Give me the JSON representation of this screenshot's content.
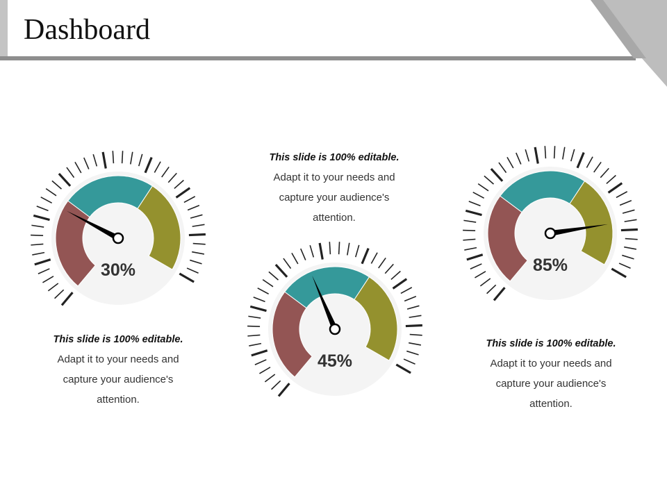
{
  "title": "Dashboard",
  "colors": {
    "segment_low": "#935554",
    "segment_mid": "#35999A",
    "segment_high": "#94912E",
    "tick": "#222222",
    "header_gray": "#BDBDBD"
  },
  "caption": {
    "bold": "This slide is 100% editable.",
    "line1": "Adapt it to your needs and",
    "line2": "capture your audience's",
    "line3": "attention."
  },
  "chart_data": [
    {
      "type": "gauge",
      "value": 30,
      "label": "30%",
      "range": [
        0,
        100
      ]
    },
    {
      "type": "gauge",
      "value": 45,
      "label": "45%",
      "range": [
        0,
        100
      ]
    },
    {
      "type": "gauge",
      "value": 85,
      "label": "85%",
      "range": [
        0,
        100
      ]
    }
  ]
}
